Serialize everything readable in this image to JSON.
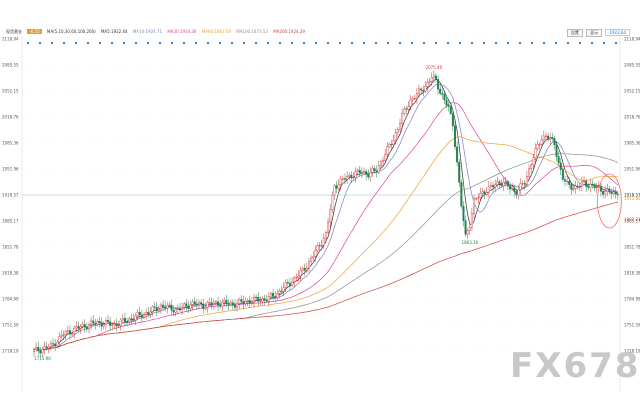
{
  "header": {
    "symbol_label": "现货黄金",
    "price_badge": "-6.55",
    "ma_params": "MA(5,10,30,60,100,200)",
    "ma5_label": "MA5:1922.64",
    "ma10_label": "MA10:1924.71",
    "ma30_label": "MA30:1934.36",
    "ma60_label": "MA60:1863.59",
    "ma100_label": "MA100:1873.53",
    "ma200_label": "MA200:1924.29",
    "btn_left": "设置",
    "btn_right": "显示",
    "right_value": "1923.64"
  },
  "colors": {
    "ma5": "#333333",
    "ma10": "#8080c0",
    "ma30": "#e0409a",
    "ma60": "#f0a030",
    "ma100": "#909090",
    "ma200": "#d04040",
    "up": "#d03030",
    "down": "#208050",
    "dots": "#1e78c8",
    "ellipse": "#ff7070",
    "hline": "#9fc0dc"
  },
  "chart_data": {
    "type": "candlestick",
    "y_ticks": [
      "2118.94",
      "2085.55",
      "2052.15",
      "2018.76",
      "1985.36",
      "1951.96",
      "1918.57",
      "1885.17",
      "1851.78",
      "1818.38",
      "1784.99",
      "1751.59",
      "1718.19"
    ],
    "right_axis_top": "2118.94",
    "ylim": [
      1684.8,
      2118.94
    ],
    "annotations": {
      "high": {
        "text": "2075.40",
        "value": 2075.4
      },
      "post_low": {
        "text": "1863.16",
        "value": 1863.16
      },
      "start_low": {
        "text": "1715.90",
        "value": 1715.9
      }
    },
    "current_price": {
      "text": "1918.57",
      "value": 1918.57
    },
    "right_labels": [
      {
        "text": "1918.57",
        "value": 1918.57,
        "color": "#6a9fcf"
      },
      {
        "text": "1913.88",
        "value": 1913.88,
        "color": "#f0a030"
      },
      {
        "text": "1887.21",
        "value": 1887.21,
        "color": "#d04040"
      }
    ],
    "close_keypoints": [
      [
        0,
        1718
      ],
      [
        8,
        1724
      ],
      [
        14,
        1740
      ],
      [
        22,
        1749
      ],
      [
        30,
        1755
      ],
      [
        38,
        1752
      ],
      [
        46,
        1760
      ],
      [
        54,
        1768
      ],
      [
        60,
        1776
      ],
      [
        68,
        1771
      ],
      [
        74,
        1779
      ],
      [
        80,
        1777
      ],
      [
        88,
        1780
      ],
      [
        94,
        1778
      ],
      [
        102,
        1783
      ],
      [
        110,
        1785
      ],
      [
        114,
        1790
      ],
      [
        120,
        1804
      ],
      [
        126,
        1818
      ],
      [
        130,
        1832
      ],
      [
        134,
        1850
      ],
      [
        138,
        1868
      ],
      [
        140,
        1900
      ],
      [
        142,
        1930
      ],
      [
        146,
        1938
      ],
      [
        150,
        1944
      ],
      [
        154,
        1948
      ],
      [
        158,
        1946
      ],
      [
        162,
        1950
      ],
      [
        166,
        1972
      ],
      [
        170,
        1990
      ],
      [
        174,
        2020
      ],
      [
        178,
        2040
      ],
      [
        182,
        2050
      ],
      [
        186,
        2062
      ],
      [
        188,
        2070
      ],
      [
        190,
        2065
      ],
      [
        192,
        2052
      ],
      [
        194,
        2040
      ],
      [
        196,
        2030
      ],
      [
        198,
        2010
      ],
      [
        200,
        1960
      ],
      [
        202,
        1905
      ],
      [
        204,
        1865
      ],
      [
        206,
        1882
      ],
      [
        208,
        1910
      ],
      [
        212,
        1922
      ],
      [
        216,
        1928
      ],
      [
        220,
        1936
      ],
      [
        224,
        1930
      ],
      [
        228,
        1922
      ],
      [
        232,
        1935
      ],
      [
        236,
        1968
      ],
      [
        240,
        1992
      ],
      [
        242,
        1995
      ],
      [
        246,
        1984
      ],
      [
        248,
        1960
      ],
      [
        250,
        1940
      ],
      [
        252,
        1932
      ],
      [
        256,
        1928
      ],
      [
        260,
        1934
      ],
      [
        264,
        1930
      ],
      [
        268,
        1925
      ],
      [
        272,
        1922
      ],
      [
        276,
        1918.57
      ]
    ]
  },
  "watermark": "FX678"
}
